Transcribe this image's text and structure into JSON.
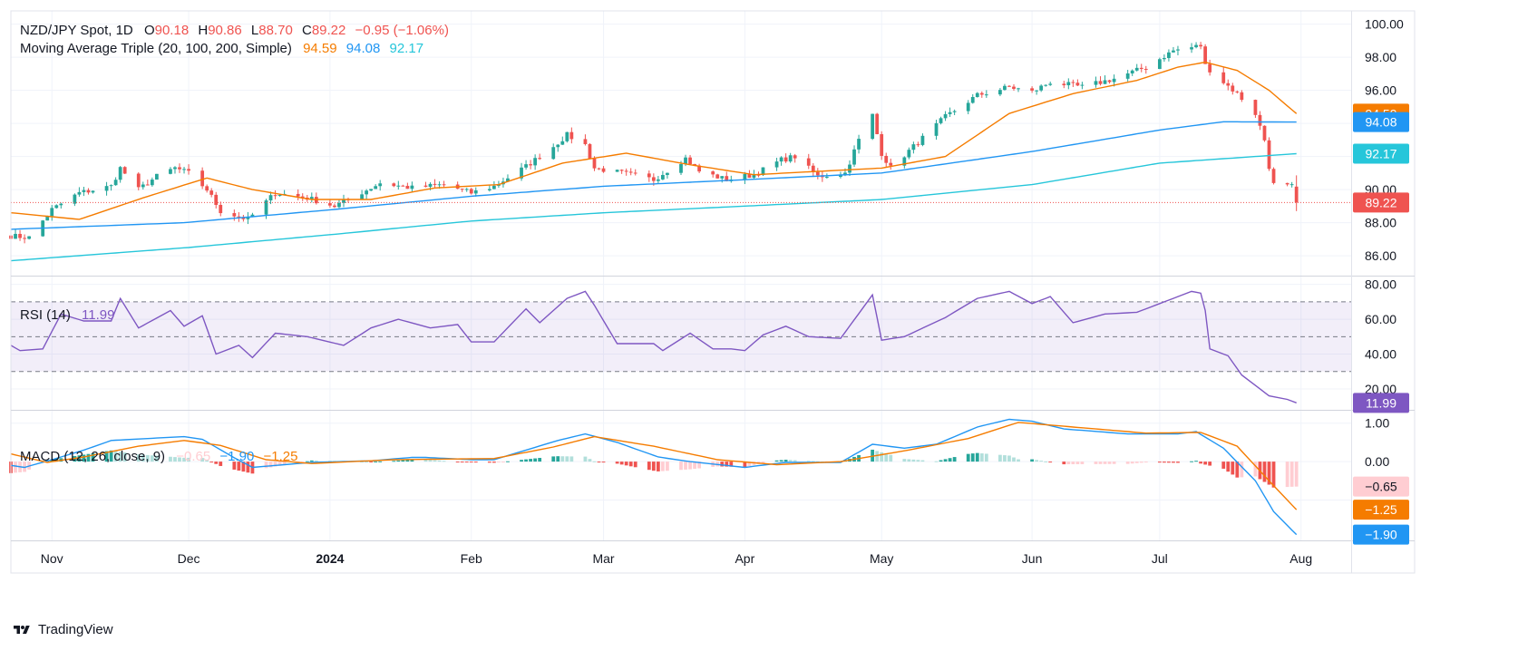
{
  "header": {
    "symbol": "NZD/JPY Spot, 1D",
    "o_label": "O",
    "o_value": "90.18",
    "h_label": "H",
    "h_value": "90.86",
    "l_label": "L",
    "l_value": "88.70",
    "c_label": "C",
    "c_value": "89.22",
    "change": "−0.95 (−1.06%)"
  },
  "ma_legend": {
    "title": "Moving Average Triple (20, 100, 200, Simple)",
    "ma20": "94.59",
    "ma100": "94.08",
    "ma200": "92.17"
  },
  "rsi_legend": {
    "title": "RSI (14)",
    "value": "11.99"
  },
  "macd_legend": {
    "title": "MACD (12, 26, close, 9)",
    "hist": "−0.65",
    "macd": "−1.90",
    "signal": "−1.25"
  },
  "colors": {
    "up": "#26a69a",
    "down": "#ef5350",
    "ma20": "#f57c00",
    "ma100": "#2196f3",
    "ma200": "#26c6da",
    "rsi": "#7e57c2",
    "macd": "#2196f3",
    "signal": "#f57c00",
    "hist_up_strong": "#26a69a",
    "hist_up_weak": "#b2dfdb",
    "hist_dn_strong": "#ef5350",
    "hist_dn_weak": "#ffcdd2"
  },
  "price_axis": {
    "ticks": [
      "100.00",
      "98.00",
      "96.00",
      "94.00",
      "92.00",
      "90.00",
      "88.00",
      "86.00"
    ]
  },
  "rsi_axis": {
    "ticks": [
      "80.00",
      "60.00",
      "40.00",
      "20.00"
    ]
  },
  "macd_axis": {
    "ticks": [
      "1.00",
      "0.00"
    ]
  },
  "price_labels": [
    {
      "text": "94.59",
      "value": 94.59,
      "color": "#f57c00"
    },
    {
      "text": "94.08",
      "value": 94.08,
      "color": "#2196f3"
    },
    {
      "text": "92.17",
      "value": 92.17,
      "color": "#26c6da"
    },
    {
      "text": "89.22",
      "value": 89.22,
      "color": "#ef5350"
    }
  ],
  "rsi_label": {
    "text": "11.99",
    "value": 11.99,
    "color": "#7e57c2"
  },
  "macd_labels": [
    {
      "text": "−0.65",
      "value": -0.65,
      "color": "#ffcdd2",
      "text_color": "#131722"
    },
    {
      "text": "−1.25",
      "value": -1.25,
      "color": "#f57c00",
      "text_color": "#ffffff"
    },
    {
      "text": "−1.90",
      "value": -1.9,
      "color": "#2196f3",
      "text_color": "#ffffff"
    }
  ],
  "x_axis": {
    "labels": [
      {
        "text": "Nov",
        "date": "2023-11-01",
        "bold": false
      },
      {
        "text": "Dec",
        "date": "2023-12-01",
        "bold": false
      },
      {
        "text": "2024",
        "date": "2024-01-01",
        "bold": true
      },
      {
        "text": "Feb",
        "date": "2024-02-01",
        "bold": false
      },
      {
        "text": "Mar",
        "date": "2024-03-01",
        "bold": false
      },
      {
        "text": "Apr",
        "date": "2024-04-01",
        "bold": false
      },
      {
        "text": "May",
        "date": "2024-05-01",
        "bold": false
      },
      {
        "text": "Jun",
        "date": "2024-06-03",
        "bold": false
      },
      {
        "text": "Jul",
        "date": "2024-07-01",
        "bold": false
      },
      {
        "text": "Aug",
        "date": "2024-08-01",
        "bold": false
      }
    ]
  },
  "footer": {
    "brand": "TradingView"
  },
  "chart_data": {
    "type": "line",
    "title": "NZD/JPY Spot, 1D",
    "x_range": [
      "2023-10-23",
      "2024-08-12"
    ],
    "panes": [
      {
        "name": "price",
        "ylim": [
          84.8,
          100.8
        ],
        "grid": true
      },
      {
        "name": "rsi",
        "ylim": [
          8,
          84
        ],
        "bands": [
          30,
          50,
          70
        ],
        "grid": true
      },
      {
        "name": "macd",
        "ylim": [
          -2.05,
          1.3
        ],
        "grid": true
      }
    ],
    "close_anchors": [
      [
        "2023-10-23",
        87.2
      ],
      [
        "2023-10-27",
        87.1
      ],
      [
        "2023-11-01",
        88.8
      ],
      [
        "2023-11-07",
        89.8
      ],
      [
        "2023-11-14",
        90.2
      ],
      [
        "2023-11-16",
        91.3
      ],
      [
        "2023-11-20",
        90.0
      ],
      [
        "2023-11-24",
        90.8
      ],
      [
        "2023-11-28",
        91.3
      ],
      [
        "2023-12-01",
        91.0
      ],
      [
        "2023-12-05",
        90.0
      ],
      [
        "2023-12-08",
        88.7
      ],
      [
        "2023-12-14",
        88.2
      ],
      [
        "2023-12-20",
        89.8
      ],
      [
        "2023-12-27",
        89.5
      ],
      [
        "2024-01-02",
        89.0
      ],
      [
        "2024-01-05",
        89.4
      ],
      [
        "2024-01-12",
        90.4
      ],
      [
        "2024-01-19",
        90.1
      ],
      [
        "2024-01-26",
        90.3
      ],
      [
        "2024-02-01",
        89.8
      ],
      [
        "2024-02-06",
        90.2
      ],
      [
        "2024-02-13",
        91.4
      ],
      [
        "2024-02-19",
        92.6
      ],
      [
        "2024-02-22",
        93.3
      ],
      [
        "2024-02-26",
        92.7
      ],
      [
        "2024-02-28",
        91.3
      ],
      [
        "2024-03-05",
        91.0
      ],
      [
        "2024-03-12",
        90.6
      ],
      [
        "2024-03-19",
        91.9
      ],
      [
        "2024-03-22",
        91.1
      ],
      [
        "2024-03-28",
        90.6
      ],
      [
        "2024-04-03",
        90.9
      ],
      [
        "2024-04-09",
        91.8
      ],
      [
        "2024-04-12",
        92.0
      ],
      [
        "2024-04-17",
        90.8
      ],
      [
        "2024-04-23",
        91.0
      ],
      [
        "2024-04-26",
        93.0
      ],
      [
        "2024-04-29",
        94.5
      ],
      [
        "2024-05-01",
        92.2
      ],
      [
        "2024-05-03",
        91.3
      ],
      [
        "2024-05-08",
        92.6
      ],
      [
        "2024-05-15",
        94.4
      ],
      [
        "2024-05-22",
        95.7
      ],
      [
        "2024-05-29",
        96.2
      ],
      [
        "2024-06-03",
        95.9
      ],
      [
        "2024-06-07",
        96.5
      ],
      [
        "2024-06-14",
        96.2
      ],
      [
        "2024-06-21",
        96.7
      ],
      [
        "2024-06-28",
        97.4
      ],
      [
        "2024-07-04",
        98.4
      ],
      [
        "2024-07-10",
        98.7
      ],
      [
        "2024-07-11",
        97.5
      ],
      [
        "2024-07-15",
        96.5
      ],
      [
        "2024-07-18",
        95.8
      ],
      [
        "2024-07-22",
        94.6
      ],
      [
        "2024-07-24",
        93.0
      ],
      [
        "2024-07-25",
        91.4
      ],
      [
        "2024-07-26",
        90.3
      ],
      [
        "2024-07-29",
        90.2
      ],
      [
        "2024-07-30",
        90.18
      ],
      [
        "2024-07-31",
        89.22
      ]
    ],
    "last_bar": {
      "date": "2024-07-31",
      "open": 90.18,
      "high": 90.86,
      "low": 88.7,
      "close": 89.22
    },
    "ma20_anchors": [
      [
        "2023-10-23",
        88.6
      ],
      [
        "2023-11-07",
        88.2
      ],
      [
        "2023-11-21",
        89.5
      ],
      [
        "2023-12-05",
        90.7
      ],
      [
        "2023-12-15",
        90.0
      ],
      [
        "2023-12-28",
        89.4
      ],
      [
        "2024-01-10",
        89.4
      ],
      [
        "2024-01-24",
        90.1
      ],
      [
        "2024-02-07",
        90.3
      ],
      [
        "2024-02-21",
        91.6
      ],
      [
        "2024-03-06",
        92.2
      ],
      [
        "2024-03-20",
        91.5
      ],
      [
        "2024-04-03",
        90.9
      ],
      [
        "2024-04-17",
        91.1
      ],
      [
        "2024-05-01",
        91.3
      ],
      [
        "2024-05-15",
        92.0
      ],
      [
        "2024-05-29",
        94.6
      ],
      [
        "2024-06-12",
        95.8
      ],
      [
        "2024-06-26",
        96.6
      ],
      [
        "2024-07-05",
        97.4
      ],
      [
        "2024-07-11",
        97.7
      ],
      [
        "2024-07-18",
        97.2
      ],
      [
        "2024-07-25",
        96.0
      ],
      [
        "2024-07-31",
        94.59
      ]
    ],
    "ma100_anchors": [
      [
        "2023-10-23",
        87.6
      ],
      [
        "2023-11-30",
        88.0
      ],
      [
        "2024-01-02",
        88.8
      ],
      [
        "2024-02-01",
        89.6
      ],
      [
        "2024-03-01",
        90.2
      ],
      [
        "2024-04-01",
        90.6
      ],
      [
        "2024-05-01",
        91.0
      ],
      [
        "2024-06-03",
        92.3
      ],
      [
        "2024-07-01",
        93.6
      ],
      [
        "2024-07-15",
        94.1
      ],
      [
        "2024-07-31",
        94.08
      ]
    ],
    "ma200_anchors": [
      [
        "2023-10-23",
        85.7
      ],
      [
        "2023-12-01",
        86.5
      ],
      [
        "2024-01-02",
        87.3
      ],
      [
        "2024-02-01",
        88.1
      ],
      [
        "2024-03-01",
        88.6
      ],
      [
        "2024-04-01",
        89.0
      ],
      [
        "2024-05-01",
        89.4
      ],
      [
        "2024-06-03",
        90.3
      ],
      [
        "2024-07-01",
        91.6
      ],
      [
        "2024-07-31",
        92.17
      ]
    ],
    "rsi_anchors": [
      [
        "2023-10-23",
        45
      ],
      [
        "2023-10-25",
        42
      ],
      [
        "2023-10-30",
        43
      ],
      [
        "2023-11-03",
        63
      ],
      [
        "2023-11-08",
        59
      ],
      [
        "2023-11-14",
        59
      ],
      [
        "2023-11-16",
        72
      ],
      [
        "2023-11-20",
        55
      ],
      [
        "2023-11-27",
        65
      ],
      [
        "2023-11-30",
        56
      ],
      [
        "2023-12-04",
        62
      ],
      [
        "2023-12-07",
        40
      ],
      [
        "2023-12-12",
        45
      ],
      [
        "2023-12-15",
        38
      ],
      [
        "2023-12-20",
        52
      ],
      [
        "2023-12-27",
        50
      ],
      [
        "2024-01-04",
        45
      ],
      [
        "2024-01-10",
        55
      ],
      [
        "2024-01-16",
        60
      ],
      [
        "2024-01-23",
        55
      ],
      [
        "2024-01-29",
        57
      ],
      [
        "2024-02-01",
        47
      ],
      [
        "2024-02-06",
        47
      ],
      [
        "2024-02-13",
        66
      ],
      [
        "2024-02-16",
        58
      ],
      [
        "2024-02-22",
        72
      ],
      [
        "2024-02-26",
        76
      ],
      [
        "2024-02-28",
        68
      ],
      [
        "2024-03-04",
        46
      ],
      [
        "2024-03-12",
        46
      ],
      [
        "2024-03-14",
        42
      ],
      [
        "2024-03-20",
        52
      ],
      [
        "2024-03-25",
        43
      ],
      [
        "2024-03-29",
        43
      ],
      [
        "2024-04-01",
        42
      ],
      [
        "2024-04-05",
        51
      ],
      [
        "2024-04-10",
        56
      ],
      [
        "2024-04-15",
        50
      ],
      [
        "2024-04-22",
        49
      ],
      [
        "2024-04-29",
        74
      ],
      [
        "2024-05-01",
        48
      ],
      [
        "2024-05-06",
        50
      ],
      [
        "2024-05-15",
        61
      ],
      [
        "2024-05-22",
        72
      ],
      [
        "2024-05-29",
        76
      ],
      [
        "2024-06-03",
        69
      ],
      [
        "2024-06-07",
        73
      ],
      [
        "2024-06-12",
        58
      ],
      [
        "2024-06-19",
        63
      ],
      [
        "2024-06-26",
        64
      ],
      [
        "2024-07-01",
        69
      ],
      [
        "2024-07-04",
        72
      ],
      [
        "2024-07-08",
        76
      ],
      [
        "2024-07-10",
        75
      ],
      [
        "2024-07-11",
        65
      ],
      [
        "2024-07-12",
        43
      ],
      [
        "2024-07-16",
        39
      ],
      [
        "2024-07-19",
        28
      ],
      [
        "2024-07-23",
        20
      ],
      [
        "2024-07-25",
        16
      ],
      [
        "2024-07-29",
        14
      ],
      [
        "2024-07-31",
        11.99
      ]
    ],
    "macd_anchors": [
      [
        "2023-10-23",
        -0.1
      ],
      [
        "2023-10-26",
        -0.15
      ],
      [
        "2023-11-01",
        0.05
      ],
      [
        "2023-11-08",
        0.3
      ],
      [
        "2023-11-14",
        0.55
      ],
      [
        "2023-11-22",
        0.6
      ],
      [
        "2023-11-30",
        0.65
      ],
      [
        "2023-12-04",
        0.58
      ],
      [
        "2023-12-11",
        0.1
      ],
      [
        "2023-12-15",
        -0.15
      ],
      [
        "2023-12-20",
        -0.1
      ],
      [
        "2023-12-28",
        -0.02
      ],
      [
        "2024-01-10",
        0.02
      ],
      [
        "2024-01-20",
        0.12
      ],
      [
        "2024-02-01",
        0.05
      ],
      [
        "2024-02-06",
        0.05
      ],
      [
        "2024-02-13",
        0.3
      ],
      [
        "2024-02-20",
        0.55
      ],
      [
        "2024-02-26",
        0.72
      ],
      [
        "2024-03-04",
        0.5
      ],
      [
        "2024-03-13",
        0.12
      ],
      [
        "2024-03-20",
        0.0
      ],
      [
        "2024-04-01",
        -0.15
      ],
      [
        "2024-04-10",
        -0.02
      ],
      [
        "2024-04-22",
        -0.02
      ],
      [
        "2024-04-29",
        0.45
      ],
      [
        "2024-05-06",
        0.35
      ],
      [
        "2024-05-13",
        0.45
      ],
      [
        "2024-05-22",
        0.9
      ],
      [
        "2024-05-29",
        1.1
      ],
      [
        "2024-06-03",
        1.05
      ],
      [
        "2024-06-10",
        0.85
      ],
      [
        "2024-06-24",
        0.72
      ],
      [
        "2024-07-05",
        0.72
      ],
      [
        "2024-07-09",
        0.78
      ],
      [
        "2024-07-15",
        0.35
      ],
      [
        "2024-07-22",
        -0.5
      ],
      [
        "2024-07-26",
        -1.3
      ],
      [
        "2024-07-31",
        -1.9
      ]
    ],
    "signal_anchors": [
      [
        "2023-10-23",
        0.2
      ],
      [
        "2023-10-31",
        -0.02
      ],
      [
        "2023-11-08",
        0.12
      ],
      [
        "2023-11-20",
        0.4
      ],
      [
        "2023-11-30",
        0.55
      ],
      [
        "2023-12-08",
        0.42
      ],
      [
        "2023-12-18",
        0.05
      ],
      [
        "2023-12-28",
        -0.05
      ],
      [
        "2024-01-15",
        0.05
      ],
      [
        "2024-02-06",
        0.08
      ],
      [
        "2024-02-19",
        0.38
      ],
      [
        "2024-02-28",
        0.65
      ],
      [
        "2024-03-12",
        0.4
      ],
      [
        "2024-03-26",
        0.05
      ],
      [
        "2024-04-08",
        -0.08
      ],
      [
        "2024-04-22",
        0.0
      ],
      [
        "2024-05-06",
        0.28
      ],
      [
        "2024-05-20",
        0.6
      ],
      [
        "2024-05-31",
        1.02
      ],
      [
        "2024-06-12",
        0.9
      ],
      [
        "2024-06-28",
        0.74
      ],
      [
        "2024-07-10",
        0.76
      ],
      [
        "2024-07-18",
        0.4
      ],
      [
        "2024-07-25",
        -0.5
      ],
      [
        "2024-07-31",
        -1.25
      ]
    ]
  }
}
